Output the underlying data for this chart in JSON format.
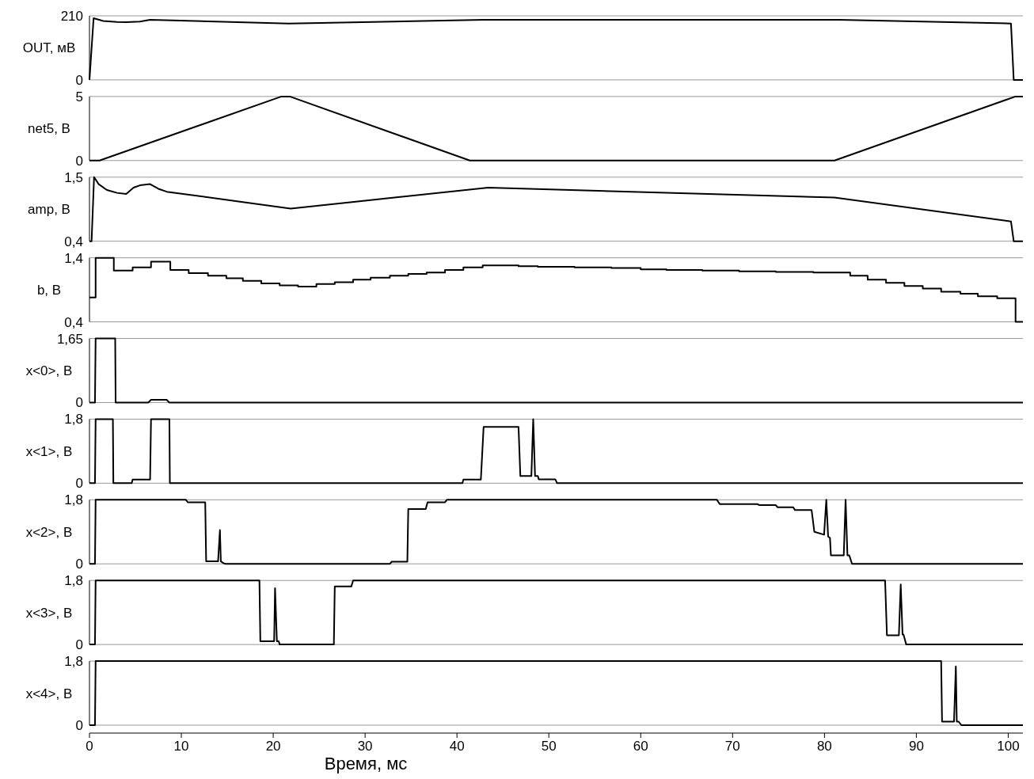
{
  "chart_data": [
    {
      "type": "line",
      "ylabel": "OUT, мВ",
      "color": "#000000",
      "tick_labels": "y",
      "xlim": [
        0,
        101.6
      ],
      "ylim": [
        0,
        210
      ],
      "yticks": [
        0,
        210
      ],
      "x": [
        0,
        0.45,
        1.5,
        3,
        4,
        5.5,
        6.6,
        21.7,
        42.9,
        81.6,
        100.3,
        100.6,
        101.6
      ],
      "values": [
        0,
        202,
        193,
        190,
        189,
        191,
        197,
        185,
        197,
        197,
        185,
        0,
        0
      ]
    },
    {
      "type": "line",
      "ylabel": "net5, B",
      "color": "#000000",
      "tick_labels": "y",
      "xlim": [
        0,
        101.6
      ],
      "ylim": [
        0,
        5
      ],
      "yticks": [
        0,
        5
      ],
      "x": [
        0,
        1.1,
        20.9,
        21.8,
        41.4,
        81.1,
        100.8,
        101.6
      ],
      "values": [
        0,
        0,
        5,
        5,
        0,
        0,
        5,
        5
      ]
    },
    {
      "type": "line",
      "ylabel": "amp, B",
      "color": "#000000",
      "tick_labels": "y",
      "xlim": [
        0,
        101.6
      ],
      "ylim": [
        0.4,
        1.5
      ],
      "yticks": [
        {
          "value": 0.4,
          "label": "0,4"
        },
        {
          "value": 1.5,
          "label": "1,5"
        }
      ],
      "x": [
        0,
        0.23,
        0.5,
        1.0,
        1.9,
        3,
        4.0,
        4.8,
        5.5,
        6.6,
        7.5,
        8.4,
        21.9,
        43.4,
        81.1,
        100.3,
        100.6,
        101.6
      ],
      "values": [
        0.4,
        0.4,
        1.5,
        1.38,
        1.28,
        1.23,
        1.21,
        1.32,
        1.36,
        1.38,
        1.3,
        1.25,
        0.96,
        1.32,
        1.15,
        0.74,
        0.4,
        0.4
      ]
    },
    {
      "type": "step",
      "ylabel": "b, B",
      "color": "#000000",
      "tick_labels": "y",
      "xlim": [
        0,
        101.6
      ],
      "ylim": [
        0.4,
        1.4
      ],
      "yticks": [
        {
          "value": 0.4,
          "label": "0,4"
        },
        {
          "value": 1.4,
          "label": "1,4"
        }
      ],
      "x": [
        0,
        0.67,
        2.65,
        4.7,
        6.7,
        8.8,
        10.8,
        12.9,
        14.9,
        16.7,
        18.7,
        20.7,
        22.7,
        24.7,
        26.7,
        28.7,
        30.6,
        32.7,
        34.7,
        36.7,
        38.7,
        40.7,
        42.8,
        46.7,
        48.8,
        52.8,
        56.8,
        60.0,
        62.8,
        66.7,
        70.7,
        74.7,
        78.8,
        82.8,
        84.7,
        86.7,
        88.7,
        90.7,
        92.7,
        94.8,
        96.7,
        98.8,
        100.8,
        101.6
      ],
      "values": [
        0.78,
        1.4,
        1.2,
        1.25,
        1.34,
        1.21,
        1.16,
        1.12,
        1.08,
        1.04,
        1.0,
        0.97,
        0.95,
        0.99,
        1.02,
        1.06,
        1.09,
        1.12,
        1.15,
        1.17,
        1.21,
        1.25,
        1.28,
        1.27,
        1.26,
        1.25,
        1.24,
        1.22,
        1.21,
        1.2,
        1.19,
        1.18,
        1.17,
        1.12,
        1.06,
        1.01,
        0.96,
        0.92,
        0.87,
        0.84,
        0.8,
        0.77,
        0.4,
        0.4
      ]
    },
    {
      "type": "line",
      "ylabel": "x<0>, B",
      "color": "#000000",
      "tick_labels": "y",
      "xlim": [
        0,
        101.6
      ],
      "ylim": [
        0,
        1.65
      ],
      "yticks": [
        0,
        {
          "value": 1.65,
          "label": "1,65"
        }
      ],
      "x": [
        0,
        0.6,
        0.67,
        2.8,
        2.85,
        6.4,
        6.7,
        8.4,
        8.7,
        101.6
      ],
      "values": [
        0,
        0,
        1.65,
        1.65,
        0,
        0,
        0.07,
        0.07,
        0,
        0
      ]
    },
    {
      "type": "line",
      "ylabel": "x<1>, B",
      "color": "#000000",
      "tick_labels": "y",
      "xlim": [
        0,
        101.6
      ],
      "ylim": [
        0,
        1.8
      ],
      "yticks": [
        0,
        {
          "value": 1.8,
          "label": "1,8"
        }
      ],
      "x": [
        0,
        0.6,
        0.67,
        2.55,
        2.6,
        4.6,
        4.7,
        6.6,
        6.7,
        8.7,
        8.75,
        40.6,
        40.7,
        42.6,
        42.9,
        46.7,
        46.9,
        48.1,
        48.3,
        48.5,
        48.8,
        48.9,
        50.7,
        50.9,
        101.6
      ],
      "values": [
        0,
        0,
        1.8,
        1.8,
        0,
        0,
        0.1,
        0.1,
        1.8,
        1.8,
        0,
        0,
        0.1,
        0.1,
        1.58,
        1.58,
        0.2,
        0.2,
        1.8,
        0.2,
        0.2,
        0.11,
        0.11,
        0,
        0
      ]
    },
    {
      "type": "line",
      "ylabel": "x<2>, B",
      "color": "#000000",
      "tick_labels": "y",
      "xlim": [
        0,
        101.6
      ],
      "ylim": [
        0,
        1.8
      ],
      "yticks": [
        0,
        {
          "value": 1.8,
          "label": "1,8"
        }
      ],
      "x": [
        0,
        0.6,
        0.67,
        10.5,
        10.7,
        12.6,
        12.7,
        14.0,
        14.2,
        14.3,
        14.6,
        14.8,
        32.7,
        32.9,
        34.6,
        34.7,
        36.6,
        36.8,
        38.7,
        38.9,
        68.3,
        68.6,
        72.7,
        72.9,
        74.7,
        74.9,
        76.6,
        76.8,
        78.6,
        78.9,
        79.96,
        80.2,
        80.4,
        80.6,
        80.7,
        82.1,
        82.3,
        82.5,
        82.7,
        83.0,
        101.6
      ],
      "values": [
        0,
        0,
        1.8,
        1.8,
        1.73,
        1.73,
        0.07,
        0.07,
        0.95,
        0.07,
        0.02,
        0,
        0,
        0.06,
        0.06,
        1.54,
        1.54,
        1.73,
        1.73,
        1.8,
        1.8,
        1.68,
        1.68,
        1.65,
        1.65,
        1.59,
        1.59,
        1.51,
        1.51,
        0.9,
        0.82,
        1.8,
        0.77,
        0.73,
        0.24,
        0.24,
        1.8,
        0.24,
        0.24,
        0,
        0
      ]
    },
    {
      "type": "line",
      "ylabel": "x<3>, B",
      "color": "#000000",
      "tick_labels": "y",
      "xlim": [
        0,
        101.6
      ],
      "ylim": [
        0,
        1.8
      ],
      "yticks": [
        0,
        {
          "value": 1.8,
          "label": "1,8"
        }
      ],
      "x": [
        0,
        0.6,
        0.67,
        18.5,
        18.6,
        20.1,
        20.2,
        20.4,
        20.6,
        20.7,
        26.6,
        26.7,
        28.5,
        28.7,
        86.6,
        86.8,
        88.1,
        88.3,
        88.5,
        88.6,
        88.9,
        101.6
      ],
      "values": [
        0,
        0,
        1.8,
        1.8,
        0.09,
        0.09,
        1.58,
        0.09,
        0.09,
        0,
        0,
        1.63,
        1.63,
        1.8,
        1.8,
        0.26,
        0.26,
        1.69,
        0.28,
        0.28,
        0,
        0
      ]
    },
    {
      "type": "line",
      "ylabel": "x<4>, B",
      "color": "#000000",
      "xlabel": "Время, мс",
      "xlim": [
        0,
        101.6
      ],
      "xticks": [
        0,
        10,
        20,
        30,
        40,
        50,
        60,
        70,
        80,
        90,
        100
      ],
      "ylim": [
        0,
        1.8
      ],
      "yticks": [
        0,
        {
          "value": 1.8,
          "label": "1,8"
        }
      ],
      "x": [
        0,
        0.6,
        0.67,
        92.7,
        92.8,
        94.1,
        94.3,
        94.4,
        94.6,
        94.9,
        101.6
      ],
      "values": [
        0,
        0,
        1.8,
        1.8,
        0.1,
        0.1,
        1.65,
        0.1,
        0.1,
        0,
        0
      ]
    }
  ]
}
